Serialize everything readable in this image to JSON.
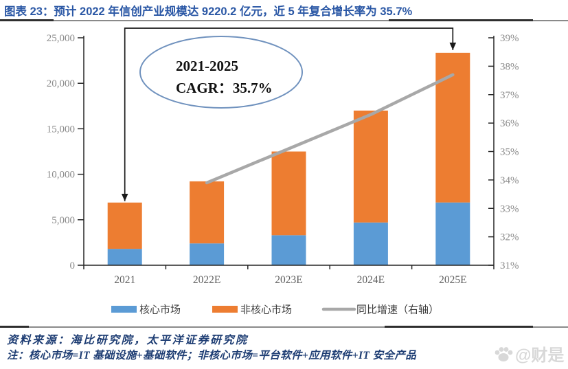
{
  "page": {
    "title": "图表 23：预计 2022 年信创产业规模达 9220.2 亿元，近 5 年复合增长率为 35.7%",
    "source_line": "资料来源：海比研究院，太平洋证券研究院",
    "note_line": "注：核心市场=IT 基础设施+基础软件；非核心市场=平台软件+应用软件+IT 安全产品",
    "watermark": "@财是",
    "watermark_icon": "paw-icon"
  },
  "colors": {
    "core_bar": "#5B9BD5",
    "noncore_bar": "#ED7D31",
    "growth_line": "#A8A8A8",
    "title_text": "#2A57A5",
    "footer_text": "#1F3E74",
    "axis_line": "#262626",
    "axis_tick_text": "#8a8a8a",
    "x_label_text": "#5f5f5f",
    "annotation_ellipse": "#7092BE",
    "arrow": "#1a1a1a",
    "watermark_text": "#d8d8d8"
  },
  "chart_data": {
    "type": "bar",
    "subtype": "stacked-bars-with-line-right-axis",
    "categories": [
      "2021",
      "2022E",
      "2023E",
      "2024E",
      "2025E"
    ],
    "series": [
      {
        "name": "核心市场",
        "type": "bar",
        "stack": true,
        "color": "#5B9BD5",
        "values": [
          1800,
          2400,
          3300,
          4700,
          6900
        ]
      },
      {
        "name": "非核心市场",
        "type": "bar",
        "stack": true,
        "color": "#ED7D31",
        "values": [
          5090,
          6820,
          9200,
          12300,
          16450
        ]
      },
      {
        "name": "同比增速（右轴）",
        "type": "line",
        "axis": "right",
        "color": "#A8A8A8",
        "values": [
          null,
          33.9,
          35.1,
          36.3,
          37.7
        ]
      }
    ],
    "stacked_totals": [
      6890,
      9220,
      12500,
      17000,
      23350
    ],
    "left_axis": {
      "min": 0,
      "max": 25000,
      "ticks": [
        "0",
        "5,000",
        "10,000",
        "15,000",
        "20,000",
        "25,000"
      ]
    },
    "right_axis": {
      "min": 31,
      "max": 39,
      "ticks": [
        "31%",
        "32%",
        "33%",
        "34%",
        "35%",
        "36%",
        "37%",
        "38%",
        "39%"
      ]
    },
    "legend": {
      "position": "bottom",
      "entries": [
        "核心市场",
        "非核心市场",
        "同比增速（右轴）"
      ]
    },
    "annotation": {
      "ellipse_lines": [
        "2021-2025",
        "CAGR：35.7%"
      ],
      "arrow_connects": [
        "2021",
        "2025E"
      ]
    },
    "grid": "off"
  }
}
